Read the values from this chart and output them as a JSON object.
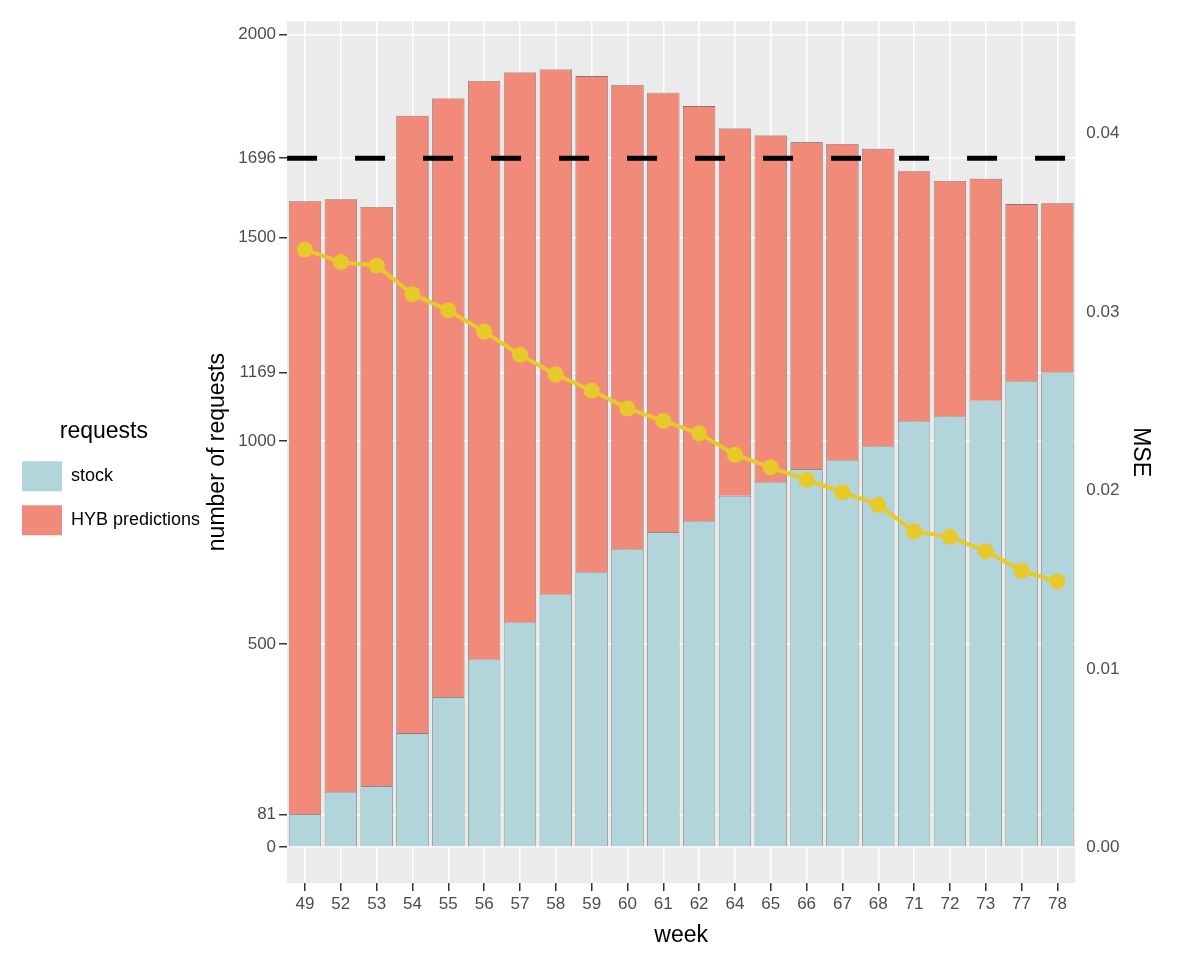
{
  "chart_data": {
    "type": "bar",
    "xlabel": "week",
    "ylabel": "number of requests",
    "y2label": "MSE",
    "legend_title": "requests",
    "stacked": true,
    "legend": "left",
    "grid": true,
    "categories": [
      "49",
      "52",
      "53",
      "54",
      "55",
      "56",
      "57",
      "58",
      "59",
      "60",
      "61",
      "62",
      "64",
      "65",
      "66",
      "67",
      "68",
      "71",
      "72",
      "73",
      "77",
      "78"
    ],
    "series": [
      {
        "name": "stock",
        "color": "#b2d5db",
        "values": [
          81,
          136,
          150,
          281,
          369,
          462,
          553,
          622,
          677,
          734,
          775,
          803,
          865,
          899,
          930,
          953,
          987,
          1049,
          1061,
          1099,
          1147,
          1169
        ]
      },
      {
        "name": "HYB predictions",
        "color": "#f28a7a",
        "values": [
          1509,
          1459,
          1426,
          1519,
          1474,
          1424,
          1354,
          1292,
          1221,
          1142,
          1082,
          1021,
          904,
          853,
          805,
          778,
          732,
          615,
          579,
          546,
          436,
          416
        ]
      },
      {
        "type": "line",
        "axis": "y2",
        "color": "#e8c92a",
        "marker": "circle",
        "line_style": "solid",
        "values": [
          0.0335,
          0.0328,
          0.0326,
          0.031,
          0.0301,
          0.0289,
          0.0276,
          0.0265,
          0.0256,
          0.0246,
          0.0239,
          0.0232,
          0.022,
          0.0213,
          0.0206,
          0.0199,
          0.0192,
          0.0177,
          0.0174,
          0.0166,
          0.0155,
          0.0149
        ]
      }
    ],
    "ylim": [
      -88,
      2033
    ],
    "yticks": [
      0,
      81,
      500,
      1000,
      1169,
      1500,
      1696,
      2000
    ],
    "y2lim": [
      -0.002,
      0.0463
    ],
    "y2ticks": [
      {
        "value": 0,
        "label": "0.00"
      },
      {
        "value": 0.01,
        "label": "0.01"
      },
      {
        "value": 0.02,
        "label": "0.02"
      },
      {
        "value": 0.03,
        "label": "0.03"
      },
      {
        "value": 0.04,
        "label": "0.04"
      }
    ],
    "ref_lines": [
      {
        "axis": "y",
        "value": 1696,
        "color": "#000000",
        "line_style": "dashed"
      }
    ]
  }
}
